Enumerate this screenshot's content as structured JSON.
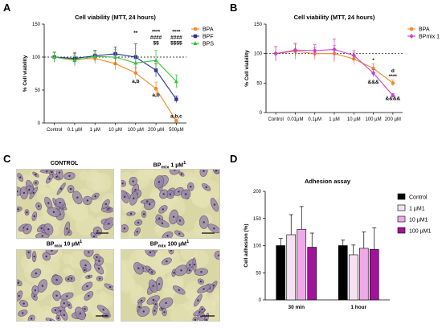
{
  "panels": {
    "A": "A",
    "B": "B",
    "C": "C",
    "D": "D"
  },
  "colors": {
    "BPA": "#f28a2e",
    "BPF": "#2f2f8f",
    "BPS": "#3bbf3b",
    "BPmix": "#c93fc9",
    "control_bar": "#000000",
    "mix_1": "#f6e1f3",
    "mix_10": "#f0a9e8",
    "mix_100": "#a1139a"
  },
  "micrographs": {
    "control": "CONTROL",
    "bp1": "BPmix 1 µM1",
    "bp10": "BPmix 10 µM1",
    "bp100": "BPmix 100 µM1"
  },
  "chart_data": [
    {
      "id": "A",
      "type": "line",
      "title": "Cell viability (MTT, 24 hours)",
      "ylabel": "% Cell viability",
      "xlabel": "",
      "categories": [
        "Control",
        "0.1 µM",
        "1 µM",
        "10 µM",
        "100 µM",
        "200 µM",
        "500µM"
      ],
      "ylim": [
        0,
        150
      ],
      "yticks": [
        0,
        50,
        100,
        150
      ],
      "reference_line": 100,
      "legend_position": "top-right",
      "series": [
        {
          "name": "BPA",
          "color_key": "BPA",
          "marker": "circle",
          "values": [
            100,
            97,
            98,
            90,
            76,
            52,
            3
          ],
          "errors": [
            8,
            10,
            8,
            9,
            8,
            10,
            3
          ]
        },
        {
          "name": "BPF",
          "color_key": "BPF",
          "marker": "square",
          "values": [
            100,
            98,
            102,
            105,
            100,
            80,
            36
          ],
          "errors": [
            7,
            8,
            8,
            10,
            20,
            10,
            5
          ]
        },
        {
          "name": "BPS",
          "color_key": "BPS",
          "marker": "triangle",
          "values": [
            100,
            95,
            101,
            100,
            91,
            95,
            63
          ],
          "errors": [
            7,
            8,
            8,
            12,
            12,
            15,
            10
          ]
        }
      ],
      "annotations": [
        {
          "category": "100 µM",
          "y": 134,
          "lines": [
            "**"
          ]
        },
        {
          "category": "200 µM",
          "y": 136,
          "lines": [
            "****",
            "####",
            "$$"
          ]
        },
        {
          "category": "500µM",
          "y": 136,
          "lines": [
            "****",
            "####",
            "$$$$"
          ]
        },
        {
          "category": "100 µM",
          "y": 61,
          "lines": [
            "a,b"
          ]
        },
        {
          "category": "200 µM",
          "y": 40,
          "lines": [
            "a,b"
          ]
        },
        {
          "category": "500µM",
          "y": 8,
          "lines": [
            "a,b,c"
          ]
        }
      ]
    },
    {
      "id": "B",
      "type": "line",
      "title": "Cell viability (MTT, 24 hours)",
      "ylabel": "% Cell viability",
      "xlabel": "",
      "categories": [
        "Control",
        "0.01µM",
        "0.1µM",
        "1 µM",
        "10 µM",
        "100 µM",
        "200 µM"
      ],
      "ylim": [
        0,
        150
      ],
      "yticks": [
        0,
        50,
        100,
        150
      ],
      "reference_line": 100,
      "legend_position": "top-right",
      "series": [
        {
          "name": "BPA",
          "color_key": "BPA",
          "marker": "circle",
          "values": [
            100,
            104,
            100,
            100,
            91,
            75,
            50
          ],
          "errors": [
            12,
            14,
            10,
            14,
            10,
            8,
            5
          ]
        },
        {
          "name": "BPmix 1",
          "color_key": "BPmix",
          "marker": "diamond",
          "values": [
            100,
            106,
            105,
            107,
            97,
            67,
            29
          ],
          "errors": [
            12,
            10,
            10,
            18,
            8,
            6,
            3
          ]
        }
      ],
      "annotations": [
        {
          "category": "100 µM",
          "y": 86,
          "lines": [
            "*"
          ]
        },
        {
          "category": "200 µM",
          "y": 68,
          "lines": [
            "d",
            "****"
          ]
        },
        {
          "category": "100 µM",
          "y": 49,
          "lines": [
            "&&&"
          ]
        },
        {
          "category": "200 µM",
          "y": 21,
          "lines": [
            "&&&&"
          ]
        }
      ]
    },
    {
      "id": "D",
      "type": "bar",
      "title": "Adhesion assay",
      "ylabel": "Cell adhesion (%)",
      "xlabel": "",
      "categories": [
        "30 min",
        "1 hour"
      ],
      "ylim": [
        0,
        200
      ],
      "yticks": [
        0,
        50,
        100,
        150,
        200
      ],
      "legend_position": "right",
      "series": [
        {
          "name": "Control",
          "color_key": "control_bar",
          "values": [
            100,
            100
          ],
          "errors": [
            13,
            10
          ]
        },
        {
          "name": "1 µM1",
          "color_key": "mix_1",
          "values": [
            120,
            83
          ],
          "errors": [
            37,
            18
          ]
        },
        {
          "name": "10 µM1",
          "color_key": "mix_10",
          "values": [
            130,
            95
          ],
          "errors": [
            42,
            30
          ]
        },
        {
          "name": "100 µM1",
          "color_key": "mix_100",
          "values": [
            97,
            93
          ],
          "errors": [
            26,
            40
          ]
        }
      ]
    }
  ]
}
